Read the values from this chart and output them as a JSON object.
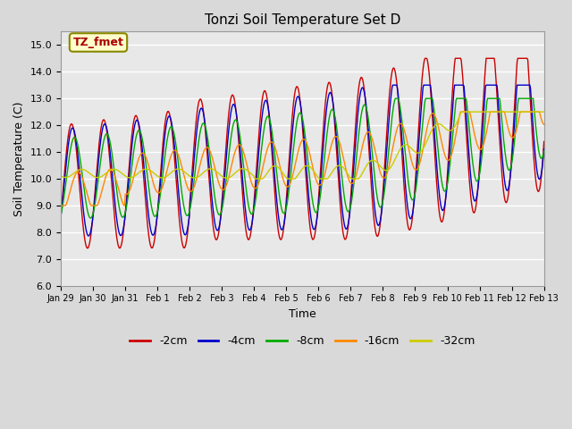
{
  "title": "Tonzi Soil Temperature Set D",
  "xlabel": "Time",
  "ylabel": "Soil Temperature (C)",
  "ylim": [
    6.0,
    15.5
  ],
  "annotation": "TZ_fmet",
  "background_color": "#d9d9d9",
  "plot_bg_color": "#e8e8e8",
  "grid_color": "white",
  "series_colors": [
    "#cc0000",
    "#0000cc",
    "#00aa00",
    "#ff8800",
    "#cccc00"
  ],
  "series_labels": [
    "-2cm",
    "-4cm",
    "-8cm",
    "-16cm",
    "-32cm"
  ],
  "x_tick_labels": [
    "Jan 29",
    "Jan 30",
    "Jan 31",
    "Feb 1",
    "Feb 2",
    "Feb 3",
    "Feb 4",
    "Feb 5",
    "Feb 6",
    "Feb 7",
    "Feb 8",
    "Feb 9",
    "Feb 10",
    "Feb 11",
    "Feb 12",
    "Feb 13"
  ],
  "yticks": [
    6.0,
    7.0,
    8.0,
    9.0,
    10.0,
    11.0,
    12.0,
    13.0,
    14.0,
    15.0
  ]
}
